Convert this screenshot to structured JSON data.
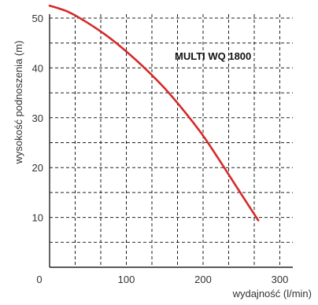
{
  "chart_data": {
    "type": "line",
    "title": "",
    "xlabel": "wydajność (l/min)",
    "ylabel": "wysokość podnoszenia (m)",
    "xlim": [
      0,
      300
    ],
    "ylim": [
      0,
      50
    ],
    "xticks": [
      0,
      100,
      200,
      300
    ],
    "yticks": [
      10,
      20,
      30,
      40,
      50
    ],
    "x_tick_labels": [
      "0",
      "100",
      "200",
      "300"
    ],
    "y_tick_labels": [
      "10",
      "20",
      "30",
      "40",
      "50"
    ],
    "grid": true,
    "grid_style": "dashed",
    "series": [
      {
        "name": "MULTI WQ 1800",
        "color": "#d42a2a",
        "x": [
          0,
          25,
          50,
          75,
          100,
          125,
          150,
          175,
          200,
          225,
          250,
          272
        ],
        "y": [
          52.5,
          51.2,
          49.0,
          46.4,
          43.3,
          39.8,
          35.9,
          31.4,
          26.4,
          20.6,
          14.6,
          9.4
        ]
      }
    ]
  }
}
